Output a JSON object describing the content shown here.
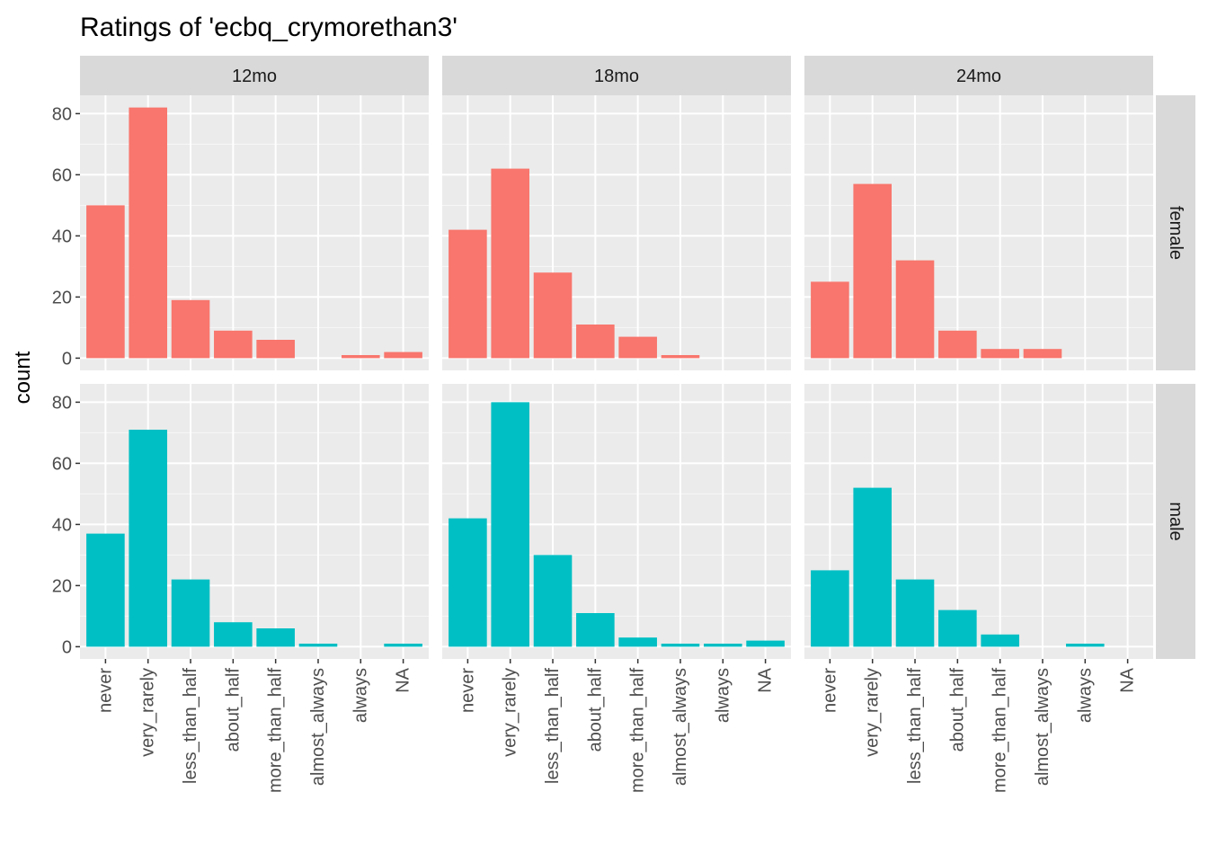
{
  "chart_data": {
    "type": "bar",
    "title": "Ratings of 'ecbq_crymorethan3'",
    "ylabel": "count",
    "xlabel": "",
    "categories": [
      "never",
      "very_rarely",
      "less_than_half",
      "about_half",
      "more_than_half",
      "almost_always",
      "always",
      "NA"
    ],
    "column_facets": [
      "12mo",
      "18mo",
      "24mo"
    ],
    "row_facets": [
      "female",
      "male"
    ],
    "ylim": [
      -4,
      86
    ],
    "yticks": [
      0,
      20,
      40,
      60,
      80
    ],
    "grid": true,
    "colors": {
      "female": "#F8766D",
      "male": "#00BFC4"
    },
    "panels": [
      {
        "row": "female",
        "col": "12mo",
        "values": [
          50,
          82,
          19,
          9,
          6,
          0,
          1,
          2
        ]
      },
      {
        "row": "female",
        "col": "18mo",
        "values": [
          42,
          62,
          28,
          11,
          7,
          1,
          0,
          0
        ]
      },
      {
        "row": "female",
        "col": "24mo",
        "values": [
          25,
          57,
          32,
          9,
          3,
          3,
          0,
          0
        ]
      },
      {
        "row": "male",
        "col": "12mo",
        "values": [
          37,
          71,
          22,
          8,
          6,
          1,
          0,
          1
        ]
      },
      {
        "row": "male",
        "col": "18mo",
        "values": [
          42,
          80,
          30,
          11,
          3,
          1,
          1,
          2
        ]
      },
      {
        "row": "male",
        "col": "24mo",
        "values": [
          25,
          52,
          22,
          12,
          4,
          0,
          1,
          0
        ]
      }
    ]
  }
}
